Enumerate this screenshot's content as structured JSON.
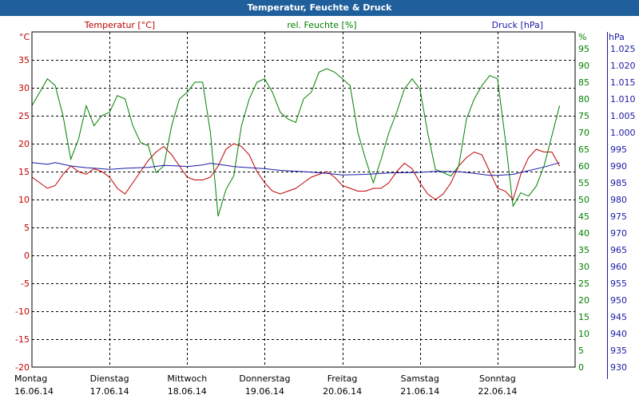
{
  "window": {
    "title": "Temperatur, Feuchte & Druck"
  },
  "chart_data": {
    "type": "line",
    "title": "Temperatur, Feuchte & Druck",
    "colors": {
      "temperature": "#c00000",
      "humidity": "#008000",
      "pressure": "#1a1aa6",
      "frame": "#1f5f9b"
    },
    "axes": {
      "temp": {
        "label": "Temperatur [°C]",
        "unit": "°C",
        "ylim": [
          -20,
          40
        ],
        "ticks": [
          "35",
          "30",
          "25",
          "20",
          "15",
          "10",
          "5",
          "0",
          "-5",
          "-10",
          "-15",
          "-20"
        ],
        "tick_values": [
          35,
          30,
          25,
          20,
          15,
          10,
          5,
          0,
          -5,
          -10,
          -15,
          -20
        ]
      },
      "hum": {
        "label": "rel. Feuchte [%]",
        "unit": "%",
        "ylim": [
          0,
          100
        ],
        "ticks": [
          "95",
          "90",
          "85",
          "80",
          "75",
          "70",
          "65",
          "60",
          "55",
          "50",
          "45",
          "40",
          "35",
          "30",
          "25",
          "20",
          "15",
          "10",
          "5",
          "0"
        ],
        "tick_values": [
          95,
          90,
          85,
          80,
          75,
          70,
          65,
          60,
          55,
          50,
          45,
          40,
          35,
          30,
          25,
          20,
          15,
          10,
          5,
          0
        ]
      },
      "press": {
        "label": "Druck [hPa]",
        "unit": "hPa",
        "ylim": [
          930,
          1030
        ],
        "ticks": [
          "1.025",
          "1.020",
          "1.015",
          "1.010",
          "1.005",
          "1.000",
          "995",
          "990",
          "985",
          "980",
          "975",
          "970",
          "965",
          "960",
          "955",
          "950",
          "945",
          "940",
          "935",
          "930"
        ],
        "tick_values": [
          1025,
          1020,
          1015,
          1010,
          1005,
          1000,
          995,
          990,
          985,
          980,
          975,
          970,
          965,
          960,
          955,
          950,
          945,
          940,
          935,
          930
        ]
      }
    },
    "xlim": [
      0,
      7
    ],
    "days": [
      {
        "name": "Montag",
        "date": "16.06.14"
      },
      {
        "name": "Dienstag",
        "date": "17.06.14"
      },
      {
        "name": "Mittwoch",
        "date": "18.06.14"
      },
      {
        "name": "Donnerstag",
        "date": "19.06.14"
      },
      {
        "name": "Freitag",
        "date": "20.06.14"
      },
      {
        "name": "Samstag",
        "date": "21.06.14"
      },
      {
        "name": "Sonntag",
        "date": "22.06.14"
      }
    ],
    "series": [
      {
        "name": "Temperatur",
        "axis": "temp",
        "x": [
          0,
          0.1,
          0.2,
          0.3,
          0.4,
          0.5,
          0.6,
          0.7,
          0.8,
          0.9,
          1.0,
          1.1,
          1.2,
          1.3,
          1.4,
          1.5,
          1.6,
          1.7,
          1.8,
          1.9,
          2.0,
          2.1,
          2.2,
          2.3,
          2.4,
          2.5,
          2.6,
          2.7,
          2.8,
          2.9,
          3.0,
          3.1,
          3.2,
          3.3,
          3.4,
          3.5,
          3.6,
          3.7,
          3.8,
          3.9,
          4.0,
          4.1,
          4.2,
          4.3,
          4.4,
          4.5,
          4.6,
          4.7,
          4.8,
          4.9,
          5.0,
          5.1,
          5.2,
          5.3,
          5.4,
          5.5,
          5.6,
          5.7,
          5.8,
          5.9,
          6.0,
          6.1,
          6.2,
          6.3,
          6.4,
          6.5,
          6.6,
          6.7,
          6.8
        ],
        "y": [
          14,
          13,
          12,
          12.5,
          14.5,
          16,
          15,
          14.5,
          15.5,
          15,
          14,
          12,
          11,
          13,
          15,
          17,
          18.5,
          19.5,
          18,
          16,
          14,
          13.5,
          13.5,
          14,
          16,
          19,
          20,
          19.5,
          18,
          15,
          13,
          11.5,
          11,
          11.5,
          12,
          13,
          14,
          14.5,
          15,
          14,
          12.5,
          12,
          11.5,
          11.5,
          12,
          12,
          13,
          15,
          16.5,
          15.5,
          13,
          11,
          10,
          11,
          13,
          16,
          17.5,
          18.5,
          18,
          15,
          12,
          11.5,
          10,
          14.5,
          17.5,
          19,
          18.5,
          18.5,
          16
        ]
      },
      {
        "name": "rel. Feuchte",
        "axis": "hum",
        "x": [
          0,
          0.1,
          0.2,
          0.3,
          0.4,
          0.5,
          0.6,
          0.7,
          0.8,
          0.9,
          1.0,
          1.1,
          1.2,
          1.3,
          1.4,
          1.5,
          1.6,
          1.7,
          1.8,
          1.9,
          2.0,
          2.1,
          2.2,
          2.3,
          2.4,
          2.5,
          2.6,
          2.7,
          2.8,
          2.9,
          3.0,
          3.1,
          3.2,
          3.3,
          3.4,
          3.5,
          3.6,
          3.7,
          3.8,
          3.9,
          4.0,
          4.1,
          4.2,
          4.3,
          4.4,
          4.5,
          4.6,
          4.7,
          4.8,
          4.9,
          5.0,
          5.1,
          5.2,
          5.3,
          5.4,
          5.5,
          5.6,
          5.7,
          5.8,
          5.9,
          6.0,
          6.1,
          6.2,
          6.3,
          6.4,
          6.5,
          6.6,
          6.7,
          6.8
        ],
        "y": [
          78,
          82,
          86,
          84,
          75,
          62,
          68,
          78,
          72,
          75,
          76,
          81,
          80,
          72,
          67,
          66,
          58,
          60,
          72,
          80,
          82,
          85,
          85,
          70,
          45,
          53,
          57,
          72,
          80,
          85,
          86,
          82,
          76,
          74,
          73,
          80,
          82,
          88,
          89,
          88,
          86,
          84,
          70,
          62,
          55,
          62,
          70,
          76,
          83,
          86,
          83,
          70,
          59,
          58,
          57,
          60,
          74,
          80,
          84,
          87,
          86,
          68,
          48,
          52,
          51,
          54,
          60,
          69,
          78
        ]
      },
      {
        "name": "Druck",
        "axis": "press",
        "x": [
          0,
          0.2,
          0.3,
          0.5,
          0.7,
          1.0,
          1.2,
          1.5,
          1.7,
          1.9,
          2.0,
          2.2,
          2.3,
          2.5,
          2.6,
          2.8,
          3.0,
          3.2,
          3.5,
          3.8,
          4.0,
          4.3,
          4.6,
          4.8,
          5.0,
          5.2,
          5.5,
          5.7,
          5.9,
          6.0,
          6.2,
          6.4,
          6.6,
          6.8
        ],
        "y": [
          991,
          990.5,
          991,
          990,
          989.5,
          989,
          989.3,
          989.6,
          990.2,
          990,
          989.8,
          990.3,
          990.8,
          990.2,
          989.8,
          989.5,
          989.2,
          988.7,
          988.3,
          987.8,
          987.3,
          987.5,
          987.9,
          988,
          988.1,
          988.4,
          988.3,
          987.8,
          987.2,
          987.2,
          987.5,
          988.6,
          989.7,
          991
        ]
      }
    ]
  }
}
